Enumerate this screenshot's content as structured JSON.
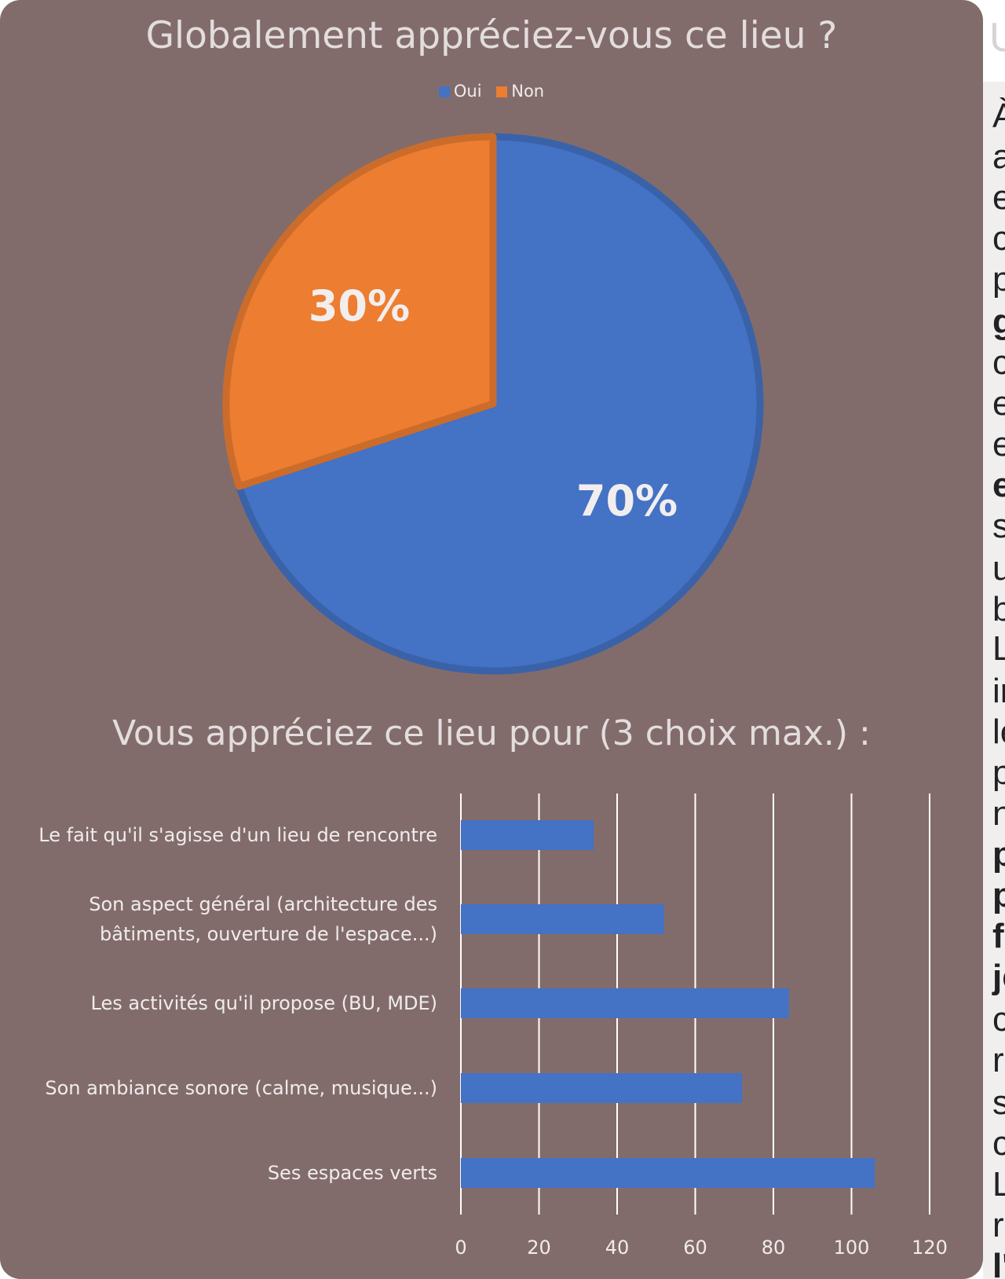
{
  "chart_data": [
    {
      "type": "pie",
      "title": "Globalement appréciez-vous ce lieu ?",
      "legend_position": "top",
      "slices": [
        {
          "name": "Oui",
          "value": 70,
          "label": "70%",
          "color": "#4472c4"
        },
        {
          "name": "Non",
          "value": 30,
          "label": "30%",
          "color": "#ed7d31"
        }
      ]
    },
    {
      "type": "bar",
      "orientation": "horizontal",
      "title": "Vous appréciez ce lieu pour (3 choix max.) :",
      "categories": [
        [
          "Le fait qu'il s'agisse d'un lieu de rencontre"
        ],
        [
          "Son aspect général (architecture des",
          "bâtiments, ouverture de l'espace...)"
        ],
        [
          "Les activités qu'il propose (BU, MDE)"
        ],
        [
          "Son ambiance sonore (calme, musique...)"
        ],
        [
          "Ses espaces verts"
        ]
      ],
      "values": [
        34,
        52,
        84,
        72,
        106
      ],
      "xlim": [
        0,
        120
      ],
      "xticks": [
        "0",
        "20",
        "40",
        "60",
        "80",
        "100",
        "120"
      ],
      "grid": true,
      "bar_color": "#4472c4"
    }
  ],
  "right_panel": {
    "title": "U",
    "lines": [
      {
        "text": "À",
        "bold": false
      },
      {
        "text": "a",
        "bold": false
      },
      {
        "text": "e",
        "bold": false
      },
      {
        "text": "c",
        "bold": false
      },
      {
        "text": "p",
        "bold": false
      },
      {
        "text": "g",
        "bold": true
      },
      {
        "text": "c",
        "bold": false
      },
      {
        "text": "e",
        "bold": false
      },
      {
        "text": "e",
        "bold": false
      },
      {
        "text": "e",
        "bold": true
      },
      {
        "text": "s",
        "bold": false
      },
      {
        "text": "u",
        "bold": false
      },
      {
        "text": "b",
        "bold": false
      },
      {
        "text": "L",
        "bold": false
      },
      {
        "text": "ir",
        "bold": false
      },
      {
        "text": "le",
        "bold": false
      },
      {
        "text": "p",
        "bold": false
      },
      {
        "text": "n",
        "bold": false
      },
      {
        "text": "p",
        "bold": true
      },
      {
        "text": "p",
        "bold": true
      },
      {
        "text": "fo",
        "bold": true
      },
      {
        "text": "je",
        "bold": true
      },
      {
        "text": "c",
        "bold": false
      },
      {
        "text": "r",
        "bold": false
      },
      {
        "text": "s",
        "bold": false
      },
      {
        "text": "c",
        "bold": false
      },
      {
        "text": "L",
        "bold": false
      },
      {
        "text": "r",
        "bold": false
      },
      {
        "text": "l'",
        "bold": true
      }
    ]
  }
}
